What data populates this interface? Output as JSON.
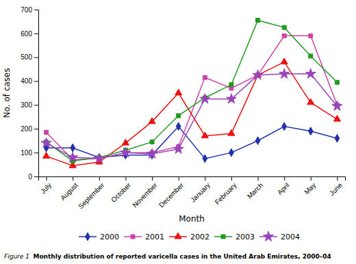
{
  "chart_data": {
    "type": "line",
    "categories": [
      "July",
      "August",
      "September",
      "October",
      "November",
      "December",
      "January",
      "February",
      "March",
      "April",
      "May",
      "June"
    ],
    "series": [
      {
        "name": "2000",
        "color": "#2233aa",
        "marker": "diamond",
        "values": [
          120,
          120,
          80,
          90,
          90,
          210,
          75,
          100,
          150,
          210,
          190,
          160
        ]
      },
      {
        "name": "2001",
        "color": "#cc44aa",
        "marker": "square",
        "values": [
          185,
          70,
          75,
          100,
          100,
          125,
          415,
          370,
          425,
          590,
          590,
          300
        ]
      },
      {
        "name": "2002",
        "color": "#ee1111",
        "marker": "triangle",
        "values": [
          85,
          45,
          60,
          140,
          230,
          350,
          170,
          180,
          425,
          480,
          310,
          240
        ]
      },
      {
        "name": "2003",
        "color": "#229922",
        "marker": "square",
        "values": [
          145,
          65,
          80,
          110,
          145,
          255,
          330,
          385,
          655,
          625,
          505,
          395
        ]
      },
      {
        "name": "2004",
        "color": "#9944bb",
        "marker": "star",
        "values": [
          140,
          80,
          75,
          100,
          95,
          115,
          325,
          325,
          425,
          430,
          430,
          295
        ]
      }
    ],
    "y_label": "No. of cases",
    "x_label": "Month",
    "ylim": [
      0,
      700
    ],
    "yticks": [
      0,
      100,
      200,
      300,
      400,
      500,
      600,
      700
    ],
    "grid": false,
    "legend": "bottom",
    "annotations": [
      "Figure 1 ",
      "Monthly distribution of reported varicella cases in the United Arab Emirates, 2000–04"
    ]
  }
}
